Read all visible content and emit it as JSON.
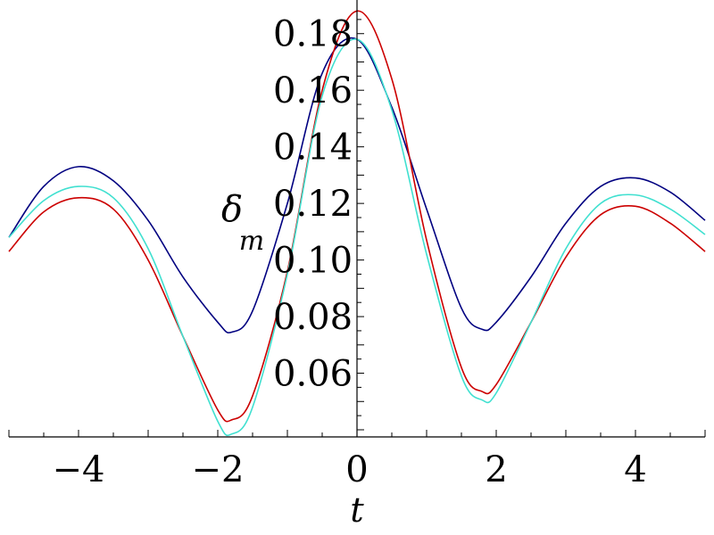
{
  "chart_data": {
    "type": "line",
    "title": "",
    "xlabel": "t",
    "ylabel": "δ",
    "ylabel_subscript": "m",
    "xlim": [
      -5,
      5
    ],
    "ylim": [
      0.04,
      0.19
    ],
    "x_ticks": [
      -4,
      -2,
      0,
      2,
      4
    ],
    "x_tick_labels": [
      "−4",
      "−2",
      "0",
      "2",
      "4"
    ],
    "y_ticks": [
      0.06,
      0.08,
      0.1,
      0.12,
      0.14,
      0.16,
      0.18
    ],
    "y_tick_labels": [
      "0.06",
      "0.08",
      "0.10",
      "0.12",
      "0.14",
      "0.16",
      "0.18"
    ],
    "grid": false,
    "legend": "none",
    "series": [
      {
        "color": "#000080",
        "x": [
          -5,
          -4.5,
          -4,
          -3.5,
          -3,
          -2.5,
          -2,
          -1.8,
          -1.5,
          -1,
          -0.5,
          0,
          0.5,
          1,
          1.5,
          1.8,
          2,
          2.5,
          3,
          3.5,
          4,
          4.5,
          5
        ],
        "y": [
          0.108,
          0.126,
          0.133,
          0.128,
          0.114,
          0.094,
          0.078,
          0.0745,
          0.082,
          0.12,
          0.166,
          0.178,
          0.154,
          0.118,
          0.083,
          0.0755,
          0.078,
          0.094,
          0.113,
          0.126,
          0.129,
          0.124,
          0.114
        ]
      },
      {
        "color": "#cc0000",
        "x": [
          -5,
          -4.5,
          -4,
          -3.5,
          -3,
          -2.5,
          -2,
          -1.8,
          -1.5,
          -1,
          -0.5,
          0,
          0.5,
          1,
          1.5,
          1.8,
          2,
          2.5,
          3,
          3.5,
          4,
          4.5,
          5
        ],
        "y": [
          0.103,
          0.117,
          0.122,
          0.118,
          0.1,
          0.073,
          0.047,
          0.0435,
          0.052,
          0.096,
          0.16,
          0.188,
          0.164,
          0.107,
          0.062,
          0.0535,
          0.056,
          0.078,
          0.101,
          0.116,
          0.119,
          0.113,
          0.103
        ]
      },
      {
        "color": "#40e0d0",
        "x": [
          -5,
          -4.5,
          -4,
          -3.5,
          -3,
          -2.5,
          -2,
          -1.8,
          -1.5,
          -1,
          -0.5,
          0,
          0.5,
          1,
          1.5,
          1.8,
          2,
          2.5,
          3,
          3.5,
          4,
          4.5,
          5
        ],
        "y": [
          0.108,
          0.121,
          0.126,
          0.122,
          0.104,
          0.073,
          0.043,
          0.0385,
          0.048,
          0.095,
          0.158,
          0.178,
          0.153,
          0.102,
          0.059,
          0.0505,
          0.053,
          0.078,
          0.104,
          0.12,
          0.123,
          0.118,
          0.109
        ]
      }
    ]
  }
}
